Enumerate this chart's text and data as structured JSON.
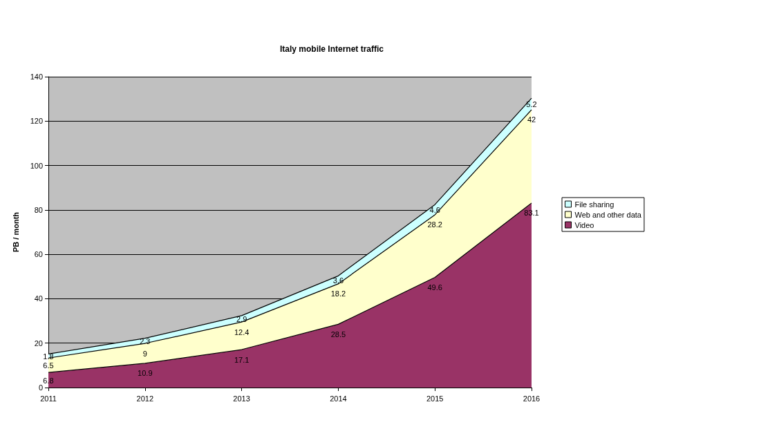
{
  "chart_data": {
    "type": "area",
    "stacked": true,
    "title": "Italy mobile Internet traffic",
    "ylabel": "PB / month",
    "categories": [
      "2011",
      "2012",
      "2013",
      "2014",
      "2015",
      "2016"
    ],
    "series": [
      {
        "name": "Video",
        "color": "#993366",
        "values": [
          6.8,
          10.9,
          17.1,
          28.5,
          49.6,
          83.1
        ]
      },
      {
        "name": "Web and other data",
        "color": "#ffffcc",
        "values": [
          6.5,
          9,
          12.4,
          18.2,
          28.2,
          42
        ]
      },
      {
        "name": "File sharing",
        "color": "#ccffff",
        "values": [
          1.8,
          2.3,
          2.9,
          3.6,
          4.6,
          5.2
        ]
      }
    ],
    "ylim": [
      0,
      140
    ],
    "yticks": [
      0,
      20,
      40,
      60,
      80,
      100,
      120,
      140
    ],
    "grid": "y",
    "legend": "right",
    "data_labels": true
  }
}
